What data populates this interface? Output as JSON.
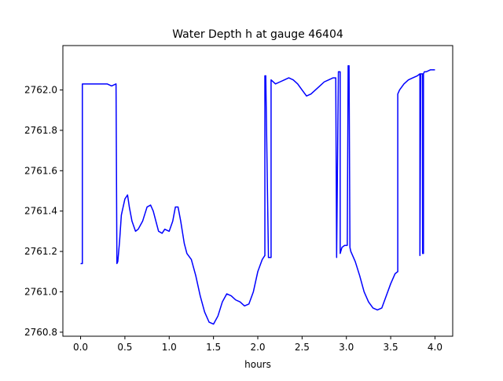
{
  "chart_data": {
    "type": "line",
    "title": "Water Depth h at gauge 46404",
    "xlabel": "hours",
    "ylabel": "",
    "xlim": [
      -0.2,
      4.2
    ],
    "ylim": [
      2760.78,
      2762.22
    ],
    "x_ticks": [
      0.0,
      0.5,
      1.0,
      1.5,
      2.0,
      2.5,
      3.0,
      3.5,
      4.0
    ],
    "x_tick_labels": [
      "0.0",
      "0.5",
      "1.0",
      "1.5",
      "2.0",
      "2.5",
      "3.0",
      "3.5",
      "4.0"
    ],
    "y_ticks": [
      2760.8,
      2761.0,
      2761.2,
      2761.4,
      2761.6,
      2761.8,
      2762.0
    ],
    "y_tick_labels": [
      "2760.8",
      "2761.0",
      "2761.2",
      "2761.4",
      "2761.6",
      "2761.8",
      "2762.0"
    ],
    "grid": false,
    "series": [
      {
        "color": "#0000ff",
        "x": [
          0.0,
          0.02,
          0.02,
          0.03,
          0.1,
          0.2,
          0.3,
          0.35,
          0.4,
          0.41,
          0.42,
          0.44,
          0.46,
          0.5,
          0.53,
          0.55,
          0.58,
          0.62,
          0.65,
          0.7,
          0.75,
          0.79,
          0.82,
          0.85,
          0.88,
          0.92,
          0.95,
          1.0,
          1.04,
          1.07,
          1.1,
          1.13,
          1.17,
          1.2,
          1.25,
          1.3,
          1.35,
          1.4,
          1.45,
          1.5,
          1.55,
          1.6,
          1.65,
          1.7,
          1.75,
          1.8,
          1.85,
          1.9,
          1.95,
          2.0,
          2.05,
          2.08,
          2.08,
          2.09,
          2.12,
          2.12,
          2.15,
          2.15,
          2.2,
          2.25,
          2.3,
          2.35,
          2.4,
          2.45,
          2.5,
          2.55,
          2.6,
          2.65,
          2.7,
          2.75,
          2.8,
          2.85,
          2.88,
          2.89,
          2.89,
          2.91,
          2.93,
          2.93,
          2.95,
          2.98,
          3.0,
          3.01,
          3.02,
          3.03,
          3.04,
          3.05,
          3.07,
          3.1,
          3.15,
          3.2,
          3.25,
          3.3,
          3.35,
          3.4,
          3.45,
          3.5,
          3.55,
          3.58,
          3.58,
          3.6,
          3.65,
          3.7,
          3.75,
          3.8,
          3.83,
          3.83,
          3.84,
          3.86,
          3.86,
          3.87,
          3.87,
          3.88,
          3.9,
          3.95,
          4.0
        ],
        "y": [
          2761.14,
          2761.14,
          2762.03,
          2762.03,
          2762.03,
          2762.03,
          2762.03,
          2762.02,
          2762.03,
          2761.14,
          2761.15,
          2761.25,
          2761.38,
          2761.46,
          2761.48,
          2761.42,
          2761.35,
          2761.3,
          2761.31,
          2761.35,
          2761.42,
          2761.43,
          2761.4,
          2761.35,
          2761.3,
          2761.29,
          2761.31,
          2761.3,
          2761.35,
          2761.42,
          2761.42,
          2761.35,
          2761.24,
          2761.19,
          2761.16,
          2761.08,
          2760.98,
          2760.9,
          2760.85,
          2760.84,
          2760.88,
          2760.95,
          2760.99,
          2760.98,
          2760.96,
          2760.95,
          2760.93,
          2760.94,
          2761.0,
          2761.1,
          2761.16,
          2761.18,
          2762.07,
          2762.07,
          2761.18,
          2761.17,
          2761.17,
          2762.05,
          2762.03,
          2762.04,
          2762.05,
          2762.06,
          2762.05,
          2762.03,
          2762.0,
          2761.97,
          2761.98,
          2762.0,
          2762.02,
          2762.04,
          2762.05,
          2762.06,
          2762.06,
          2761.17,
          2761.18,
          2762.09,
          2762.09,
          2761.19,
          2761.22,
          2761.23,
          2761.23,
          2761.23,
          2762.12,
          2762.12,
          2761.22,
          2761.2,
          2761.18,
          2761.15,
          2761.08,
          2761.0,
          2760.95,
          2760.92,
          2760.91,
          2760.92,
          2760.98,
          2761.04,
          2761.09,
          2761.1,
          2761.98,
          2762.0,
          2762.03,
          2762.05,
          2762.06,
          2762.07,
          2762.08,
          2761.18,
          2762.08,
          2762.08,
          2761.19,
          2761.19,
          2762.08,
          2762.09,
          2762.09,
          2762.1,
          2762.1
        ]
      }
    ]
  }
}
